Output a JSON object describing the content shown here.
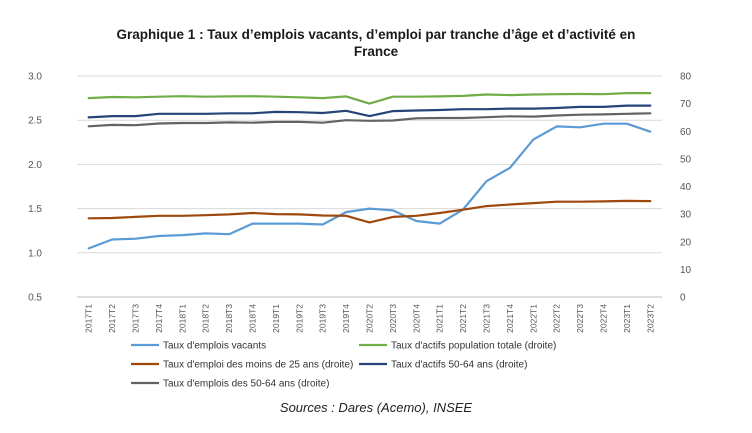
{
  "chart_data": {
    "type": "line",
    "title": "Graphique 1 : Taux d’emplois vacants, d’emploi par tranche d’âge et d’activité en France",
    "title_lines": [
      "Graphique 1 : Taux d’emplois vacants, d’emploi par tranche d’âge et d’activité en",
      "France"
    ],
    "source": "Sources : Dares (Acemo), INSEE",
    "categories": [
      "2017T1",
      "2017T2",
      "2017T3",
      "2017T4",
      "2018T1",
      "2018T2",
      "2018T3",
      "2018T4",
      "2019T1",
      "2019T2",
      "2019T3",
      "2019T4",
      "2020T2",
      "2020T3",
      "2020T4",
      "2021T1",
      "2021T2",
      "2021T3",
      "2021T4",
      "2022T1",
      "2022T2",
      "2022T3",
      "2022T4",
      "2023T1",
      "2023T2"
    ],
    "y_left": {
      "ylim": [
        0.5,
        3.0
      ],
      "ticks": [
        "0.5",
        "1.0",
        "1.5",
        "2.0",
        "2.5",
        "3.0"
      ]
    },
    "y_right": {
      "ylim": [
        0,
        80
      ],
      "ticks": [
        "0",
        "10",
        "20",
        "30",
        "40",
        "50",
        "60",
        "70",
        "80"
      ]
    },
    "grid": true,
    "legend_position": "bottom",
    "series": [
      {
        "name": "Taux d'emplois vacants",
        "axis": "left",
        "color": "#5b9bd5",
        "values": [
          1.05,
          1.15,
          1.16,
          1.19,
          1.2,
          1.22,
          1.21,
          1.33,
          1.33,
          1.33,
          1.32,
          1.46,
          1.5,
          1.48,
          1.36,
          1.33,
          1.49,
          1.81,
          1.96,
          2.28,
          2.43,
          2.42,
          2.46,
          2.46,
          2.37
        ]
      },
      {
        "name": "Taux d'actifs population totale (droite)",
        "axis": "right",
        "color": "#70ad47",
        "values": [
          72.0,
          72.4,
          72.3,
          72.5,
          72.7,
          72.5,
          72.6,
          72.7,
          72.5,
          72.3,
          72.0,
          72.6,
          70.0,
          72.5,
          72.5,
          72.6,
          72.8,
          73.3,
          73.1,
          73.3,
          73.4,
          73.5,
          73.4,
          73.8,
          73.8
        ]
      },
      {
        "name": "Taux d'emploi des moins de 25 ans (droite)",
        "axis": "right",
        "color": "#9e480e",
        "values": [
          28.5,
          28.6,
          29.0,
          29.4,
          29.4,
          29.6,
          29.9,
          30.4,
          30.0,
          29.9,
          29.5,
          29.4,
          27.0,
          29.0,
          29.4,
          30.4,
          31.6,
          32.9,
          33.5,
          34.0,
          34.5,
          34.5,
          34.6,
          34.8,
          34.7
        ]
      },
      {
        "name": "Taux d'actifs 50-64 ans (droite)",
        "axis": "right",
        "color": "#264478",
        "values": [
          65.0,
          65.5,
          65.5,
          66.3,
          66.3,
          66.3,
          66.5,
          66.5,
          67.0,
          66.9,
          66.6,
          67.4,
          65.5,
          67.3,
          67.5,
          67.7,
          68.0,
          68.0,
          68.2,
          68.2,
          68.4,
          68.8,
          68.8,
          69.3,
          69.3
        ]
      },
      {
        "name": "Taux d'emplois des 50-64 ans (droite)",
        "axis": "right",
        "color": "#636363",
        "values": [
          61.8,
          62.3,
          62.2,
          62.8,
          63.0,
          63.0,
          63.2,
          63.1,
          63.4,
          63.4,
          63.1,
          64.0,
          63.8,
          63.9,
          64.7,
          64.8,
          64.8,
          65.1,
          65.4,
          65.3,
          65.7,
          66.0,
          66.1,
          66.3,
          66.5
        ]
      }
    ]
  }
}
